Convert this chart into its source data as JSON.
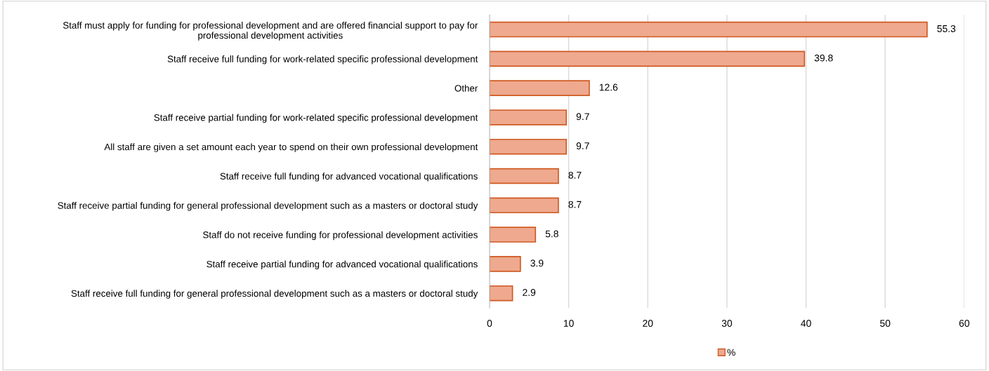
{
  "chart_data": {
    "type": "bar",
    "orientation": "horizontal",
    "categories": [
      "Staff must apply for funding for professional development and are offered financial support to pay for professional development activities",
      "Staff receive full funding for work-related specific professional development",
      "Other",
      "Staff receive partial funding for work-related specific professional development",
      "All staff are given a set amount each year to spend on their own professional development",
      "Staff receive full funding for advanced vocational qualifications",
      "Staff receive partial funding for general professional development such as a masters or doctoral study",
      "Staff do not receive funding for professional development activities",
      "Staff receive partial funding for advanced vocational qualifications",
      "Staff receive full funding for general professional development such as a masters or doctoral study"
    ],
    "series": [
      {
        "name": "%",
        "color": "#eea98f",
        "values": [
          55.3,
          39.8,
          12.6,
          9.7,
          9.7,
          8.7,
          8.7,
          5.8,
          3.9,
          2.9
        ]
      }
    ],
    "xlim": [
      0,
      60
    ],
    "xticks": [
      0,
      10,
      20,
      30,
      40,
      50,
      60
    ],
    "grid": "x",
    "legend": "bottom",
    "data_labels": true
  }
}
